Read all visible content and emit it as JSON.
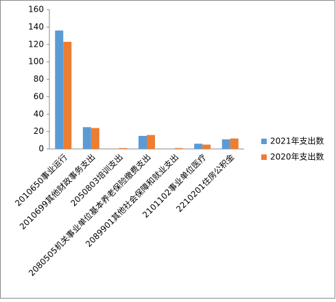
{
  "chart_data": {
    "type": "bar",
    "categories": [
      "2010650事业运行",
      "2010699其他财政事务支出",
      "2050803培训支出",
      "2080505机关事业单位基本养老保险缴费支出",
      "2089901其他社会保障和就业支出",
      "2101102事业单位医疗",
      "2210201住房公积金"
    ],
    "series": [
      {
        "name": "2021年支出数",
        "color": "#5b9bd5",
        "values": [
          136,
          25,
          0,
          15,
          0,
          6,
          11
        ]
      },
      {
        "name": "2020年支出数",
        "color": "#ed7d31",
        "values": [
          123,
          24,
          1,
          16,
          1,
          5,
          12
        ]
      }
    ],
    "ylim": [
      0,
      160
    ],
    "yticks": [
      0,
      20,
      40,
      60,
      80,
      100,
      120,
      140,
      160
    ],
    "grid": false,
    "legend": "right"
  }
}
